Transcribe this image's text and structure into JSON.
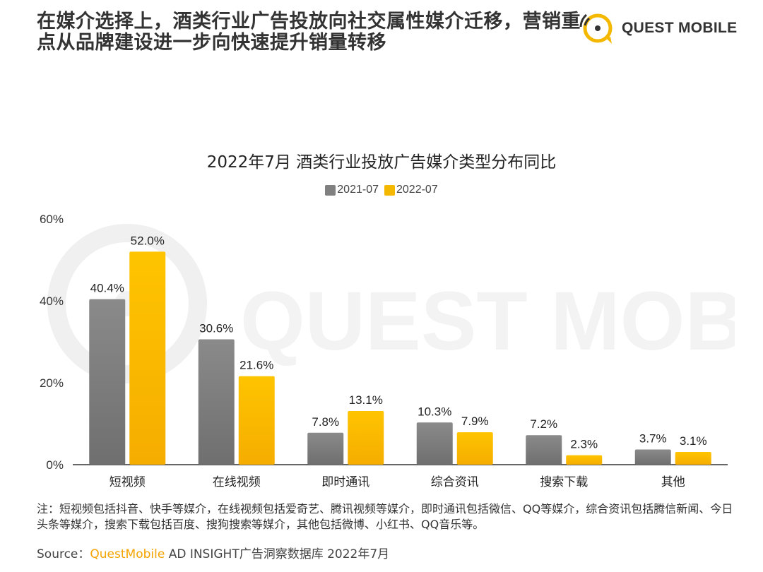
{
  "headline": {
    "line1": "在媒介选择上，酒类行业广告投放向社交属性媒介迁移，营销重",
    "line2": "点从品牌建设进一步向快速提升销量转移"
  },
  "logo": {
    "text": "QUEST MOBILE",
    "icon": "quest-mobile-logo",
    "color": "#f5b800"
  },
  "watermark": {
    "text": "QUEST MOBILE"
  },
  "colors": {
    "series_2021": "#808080",
    "series_2022": "#f5b800"
  },
  "chart_data": {
    "type": "bar",
    "title": "2022年7月 酒类行业投放广告媒介类型分布同比",
    "categories": [
      "短视频",
      "在线视频",
      "即时通讯",
      "综合资讯",
      "搜索下载",
      "其他"
    ],
    "series": [
      {
        "name": "2021-07",
        "values": [
          40.4,
          30.6,
          7.8,
          10.3,
          7.2,
          3.7
        ],
        "labels": [
          "40.4%",
          "30.6%",
          "7.8%",
          "10.3%",
          "7.2%",
          "3.7%"
        ]
      },
      {
        "name": "2022-07",
        "values": [
          52.0,
          21.6,
          13.1,
          7.9,
          2.3,
          3.1
        ],
        "labels": [
          "52.0%",
          "21.6%",
          "13.1%",
          "7.9%",
          "2.3%",
          "3.1%"
        ]
      }
    ],
    "ylim": [
      0,
      60
    ],
    "yticks": [
      0,
      20,
      40,
      60
    ],
    "ytick_labels": [
      "0%",
      "20%",
      "40%",
      "60%"
    ],
    "xlabel": "",
    "ylabel": "",
    "legend_position": "top-center",
    "grid": false
  },
  "note": "注：短视频包括抖音、快手等媒介，在线视频包括爱奇艺、腾讯视频等媒介，即时通讯包括微信、QQ等媒介，综合资讯包括腾信新闻、今日头条等媒介，搜索下载包括百度、搜狗搜索等媒介，其他包括微博、小红书、QQ音乐等。",
  "source": {
    "prefix": "Source：",
    "brand": "QuestMobile",
    "rest": " AD INSIGHT广告洞察数据库 2022年7月"
  }
}
